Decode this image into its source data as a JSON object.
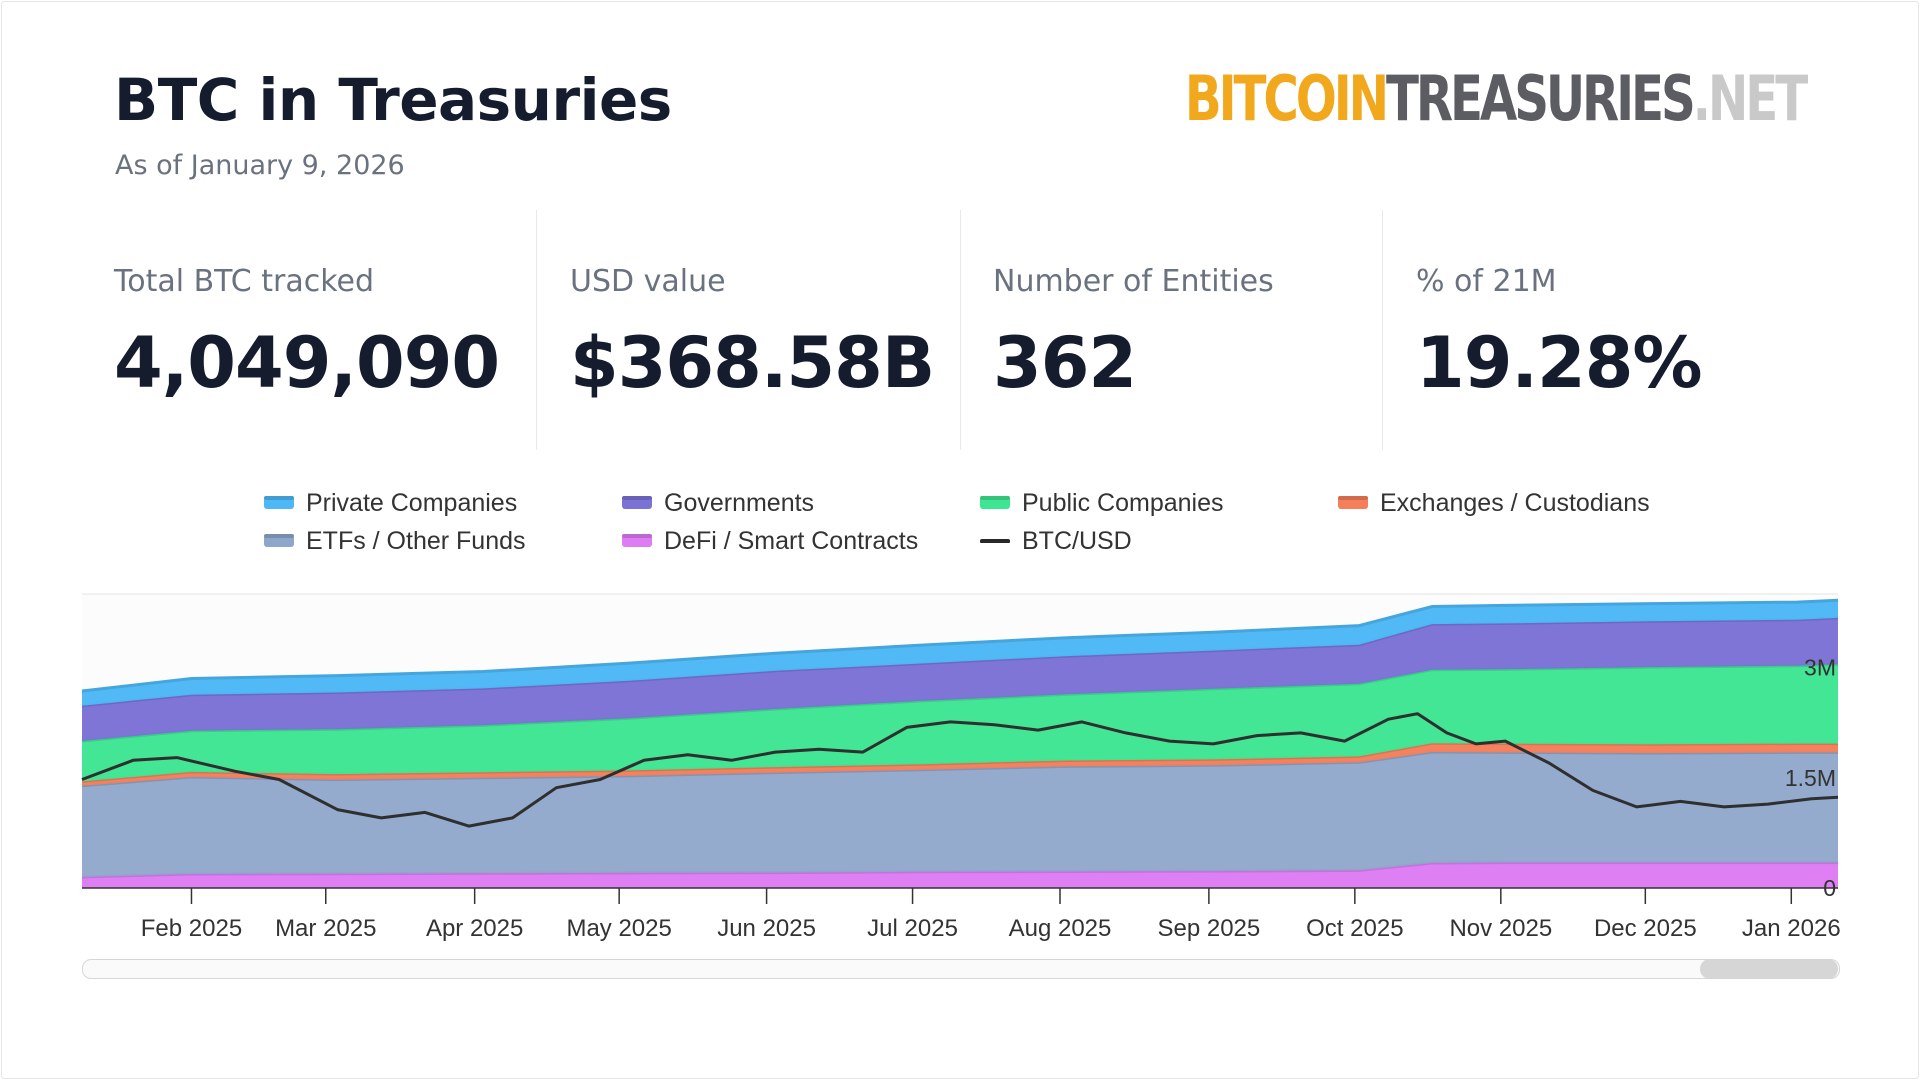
{
  "header": {
    "title": "BTC in Treasuries",
    "subtitle": "As of January 9, 2026",
    "logo": {
      "part1": "BITCOIN",
      "part2": "TREASURIES",
      "part3": ".NET"
    }
  },
  "stats": [
    {
      "label": "Total BTC tracked",
      "value": "4,049,090"
    },
    {
      "label": "USD value",
      "value": "$368.58B"
    },
    {
      "label": "Number of Entities",
      "value": "362"
    },
    {
      "label": "% of 21M",
      "value": "19.28%"
    }
  ],
  "colors": {
    "private": "#4db8f6",
    "governments": "#7b72d6",
    "public": "#3ee592",
    "exchanges": "#f57f5b",
    "etfs": "#8ea6ca",
    "defi": "#dd7cf4",
    "btcusd": "#2f2f2f"
  },
  "legend": [
    {
      "key": "private",
      "label": "Private Companies"
    },
    {
      "key": "governments",
      "label": "Governments"
    },
    {
      "key": "public",
      "label": "Public Companies"
    },
    {
      "key": "exchanges",
      "label": "Exchanges / Custodians"
    },
    {
      "key": "etfs",
      "label": "ETFs / Other Funds"
    },
    {
      "key": "defi",
      "label": "DeFi / Smart Contracts"
    },
    {
      "key": "btcusd",
      "label": "BTC/USD"
    }
  ],
  "chart_data": {
    "type": "area",
    "stacked": true,
    "x_unit": "months since 2025-01-01",
    "x_range": [
      0.25,
      12.28
    ],
    "ylim": [
      0,
      4000000
    ],
    "y_ticks": [
      {
        "value": 0,
        "label": "0"
      },
      {
        "value": 1500000,
        "label": "1.5M"
      },
      {
        "value": 3000000,
        "label": "3M"
      }
    ],
    "x_ticks": [
      {
        "x": 1,
        "label": "Feb 2025"
      },
      {
        "x": 1.92,
        "label": "Mar 2025"
      },
      {
        "x": 2.94,
        "label": "Apr 2025"
      },
      {
        "x": 3.93,
        "label": "May 2025"
      },
      {
        "x": 4.94,
        "label": "Jun 2025"
      },
      {
        "x": 5.94,
        "label": "Jul 2025"
      },
      {
        "x": 6.95,
        "label": "Aug 2025"
      },
      {
        "x": 7.97,
        "label": "Sep 2025"
      },
      {
        "x": 8.97,
        "label": "Oct 2025"
      },
      {
        "x": 9.97,
        "label": "Nov 2025"
      },
      {
        "x": 10.96,
        "label": "Dec 2025"
      },
      {
        "x": 11.96,
        "label": "Jan 2026"
      }
    ],
    "x": [
      0.25,
      1,
      2,
      3,
      4,
      5,
      6,
      7,
      8,
      9,
      9.5,
      10,
      11,
      12,
      12.28
    ],
    "series": [
      {
        "key": "defi",
        "name": "DeFi / Smart Contracts",
        "values": [
          150000,
          190000,
          195000,
          200000,
          205000,
          210000,
          220000,
          225000,
          230000,
          240000,
          340000,
          345000,
          345000,
          345000,
          345000
        ]
      },
      {
        "key": "etfs",
        "name": "ETFs / Other Funds",
        "values": [
          1240000,
          1320000,
          1280000,
          1300000,
          1320000,
          1360000,
          1390000,
          1430000,
          1440000,
          1470000,
          1510000,
          1500000,
          1490000,
          1500000,
          1500000
        ]
      },
      {
        "key": "exchanges",
        "name": "Exchanges / Custodians",
        "values": [
          60000,
          70000,
          75000,
          75000,
          75000,
          75000,
          75000,
          80000,
          80000,
          80000,
          120000,
          120000,
          120000,
          120000,
          120000
        ]
      },
      {
        "key": "public",
        "name": "Public Companies",
        "values": [
          550000,
          560000,
          610000,
          640000,
          710000,
          790000,
          860000,
          900000,
          960000,
          990000,
          1000000,
          1010000,
          1050000,
          1060000,
          1080000
        ]
      },
      {
        "key": "governments",
        "name": "Governments",
        "values": [
          480000,
          490000,
          500000,
          500000,
          510000,
          520000,
          510000,
          520000,
          520000,
          530000,
          620000,
          625000,
          625000,
          625000,
          630000
        ]
      },
      {
        "key": "private",
        "name": "Private Companies",
        "values": [
          200000,
          220000,
          230000,
          230000,
          240000,
          240000,
          250000,
          250000,
          250000,
          260000,
          240000,
          245000,
          240000,
          240000,
          240000
        ]
      }
    ],
    "btc_usd": {
      "name": "BTC/USD",
      "y_range_usd": [
        72000,
        126000
      ],
      "x": [
        0.25,
        0.6,
        0.9,
        1.3,
        1.6,
        2.0,
        2.3,
        2.6,
        2.9,
        3.2,
        3.5,
        3.8,
        4.1,
        4.4,
        4.7,
        5.0,
        5.3,
        5.6,
        5.9,
        6.2,
        6.5,
        6.8,
        7.1,
        7.4,
        7.7,
        8.0,
        8.3,
        8.6,
        8.9,
        9.2,
        9.4,
        9.6,
        9.8,
        10.0,
        10.3,
        10.6,
        10.9,
        11.2,
        11.5,
        11.8,
        12.1,
        12.28
      ],
      "values": [
        97000,
        104000,
        105000,
        100000,
        97000,
        86000,
        83000,
        85000,
        80000,
        83000,
        94000,
        97000,
        104000,
        106000,
        104000,
        107000,
        108000,
        107000,
        116000,
        118000,
        117000,
        115000,
        118000,
        114000,
        111000,
        110000,
        113000,
        114000,
        111000,
        119000,
        121000,
        114000,
        110000,
        111000,
        103000,
        93000,
        87000,
        89000,
        87000,
        88000,
        90000,
        90500
      ]
    }
  }
}
